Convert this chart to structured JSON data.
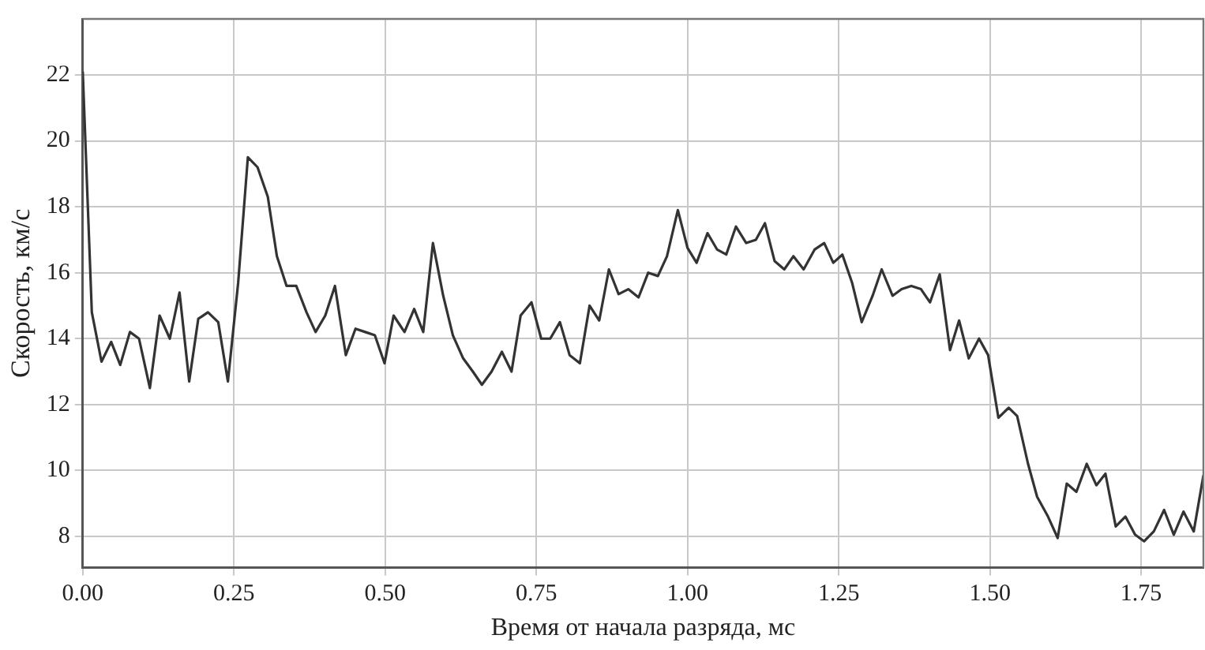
{
  "chart_data": {
    "type": "line",
    "xlabel": "Время от начала разряда, мс",
    "ylabel": "Скорость, км/с",
    "x": [
      0,
      0.015,
      0.031,
      0.047,
      0.062,
      0.078,
      0.093,
      0.111,
      0.127,
      0.144,
      0.16,
      0.176,
      0.191,
      0.207,
      0.224,
      0.24,
      0.257,
      0.273,
      0.289,
      0.306,
      0.321,
      0.337,
      0.353,
      0.37,
      0.385,
      0.401,
      0.417,
      0.435,
      0.451,
      0.467,
      0.483,
      0.499,
      0.514,
      0.532,
      0.548,
      0.563,
      0.579,
      0.596,
      0.612,
      0.629,
      0.645,
      0.66,
      0.676,
      0.693,
      0.709,
      0.724,
      0.742,
      0.758,
      0.773,
      0.789,
      0.805,
      0.822,
      0.838,
      0.854,
      0.87,
      0.886,
      0.902,
      0.919,
      0.935,
      0.951,
      0.966,
      0.984,
      1.0,
      1.015,
      1.033,
      1.049,
      1.064,
      1.08,
      1.097,
      1.113,
      1.128,
      1.144,
      1.16,
      1.175,
      1.192,
      1.21,
      1.226,
      1.241,
      1.256,
      1.272,
      1.288,
      1.306,
      1.321,
      1.339,
      1.354,
      1.37,
      1.386,
      1.401,
      1.417,
      1.434,
      1.449,
      1.465,
      1.482,
      1.497,
      1.514,
      1.531,
      1.545,
      1.563,
      1.578,
      1.596,
      1.612,
      1.627,
      1.643,
      1.66,
      1.676,
      1.691,
      1.708,
      1.724,
      1.74,
      1.755,
      1.771,
      1.788,
      1.804,
      1.82,
      1.837,
      1.853
    ],
    "series": [
      {
        "color": "#333333",
        "values": [
          22.1,
          14.8,
          13.3,
          13.9,
          13.2,
          14.2,
          14.0,
          12.5,
          14.7,
          14.0,
          15.4,
          12.7,
          14.6,
          14.8,
          14.5,
          12.7,
          15.7,
          19.5,
          19.2,
          18.3,
          16.5,
          15.6,
          15.6,
          14.8,
          14.2,
          14.7,
          15.6,
          13.5,
          14.3,
          14.2,
          14.1,
          13.25,
          14.7,
          14.2,
          14.9,
          14.2,
          16.9,
          15.3,
          14.1,
          13.4,
          13.0,
          12.6,
          13.0,
          13.6,
          13.0,
          14.7,
          15.1,
          14.0,
          14.0,
          14.5,
          13.5,
          13.25,
          15.0,
          14.55,
          16.1,
          15.35,
          15.5,
          15.25,
          16.0,
          15.9,
          16.5,
          17.9,
          16.75,
          16.3,
          17.2,
          16.7,
          16.55,
          17.4,
          16.9,
          17.0,
          17.5,
          16.35,
          16.1,
          16.5,
          16.1,
          16.7,
          16.9,
          16.3,
          16.55,
          15.7,
          14.5,
          15.3,
          16.1,
          15.3,
          15.5,
          15.6,
          15.5,
          15.1,
          15.95,
          13.65,
          14.55,
          13.4,
          14.0,
          13.5,
          11.6,
          11.9,
          11.65,
          10.2,
          9.2,
          8.6,
          7.95,
          9.6,
          9.35,
          10.2,
          9.55,
          9.9,
          8.3,
          8.6,
          8.05,
          7.85,
          8.15,
          8.8,
          8.05,
          8.75,
          8.15,
          9.85
        ]
      }
    ],
    "xlim": [
      0,
      1.853
    ],
    "ylim": [
      7.05,
      23.7
    ],
    "xticks": [
      {
        "value": 0,
        "label": "0.00"
      },
      0.25,
      {
        "value": 0.5,
        "label": "0.50"
      },
      0.75,
      {
        "value": 1,
        "label": "1.00"
      },
      1.25,
      {
        "value": 1.5,
        "label": "1.50"
      },
      1.75
    ],
    "yticks": [
      8,
      10,
      12,
      14,
      16,
      18,
      20,
      22
    ],
    "grid": true,
    "legend": false,
    "marker": "none",
    "line_style": "solid"
  }
}
